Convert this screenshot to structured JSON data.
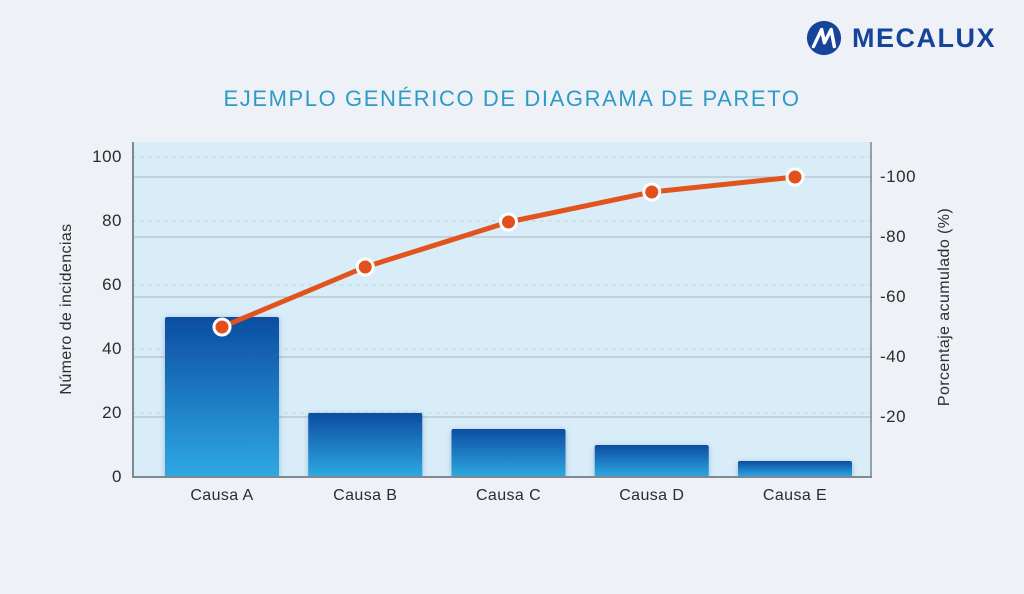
{
  "header": {
    "brand": "MECALUX"
  },
  "chart_data": {
    "type": "bar",
    "subtype": "pareto (bars + cumulative line)",
    "title": "EJEMPLO GENÉRICO DE DIAGRAMA DE PARETO",
    "categories": [
      "Causa A",
      "Causa B",
      "Causa C",
      "Causa D",
      "Causa E"
    ],
    "series": [
      {
        "name": "Número de incidencias",
        "type": "bar",
        "axis": "left",
        "values": [
          50,
          20,
          15,
          10,
          5
        ]
      },
      {
        "name": "Porcentaje acumulado",
        "type": "line",
        "axis": "right",
        "values": [
          50,
          70,
          85,
          95,
          100
        ]
      }
    ],
    "ylabel_left": "Número de incidencias",
    "ylabel_right": "Porcentaje acumulado (%)",
    "xlabel": "",
    "y_left_ticks": [
      "0",
      "20",
      "40",
      "60",
      "80",
      "100"
    ],
    "y_right_ticks": [
      "-20",
      "-40",
      "-60",
      "-80",
      "-100"
    ],
    "ylim_left": [
      0,
      100
    ],
    "ylim_right": [
      0,
      100
    ],
    "grid": "horizontal only; dashed lines for left scale, thin solid lines for right scale (doubled pairs)",
    "legend": "none",
    "colors": {
      "page_bg": "#eef2f6",
      "plot_bg": "#d9edf9",
      "bar_gradient_top": "#0c4da2",
      "bar_gradient_bottom": "#2fa9e2",
      "line": "#e2531d",
      "marker_fill": "#e2511b",
      "marker_ring": "#ffffff",
      "axis_line": "#7e8890",
      "grid_left_scale": "#c2d2da",
      "grid_right_scale": "#a9b6bf",
      "title": "#2e9ac9",
      "brand_blue": "#17449b",
      "text": "#2c2c2c"
    }
  }
}
